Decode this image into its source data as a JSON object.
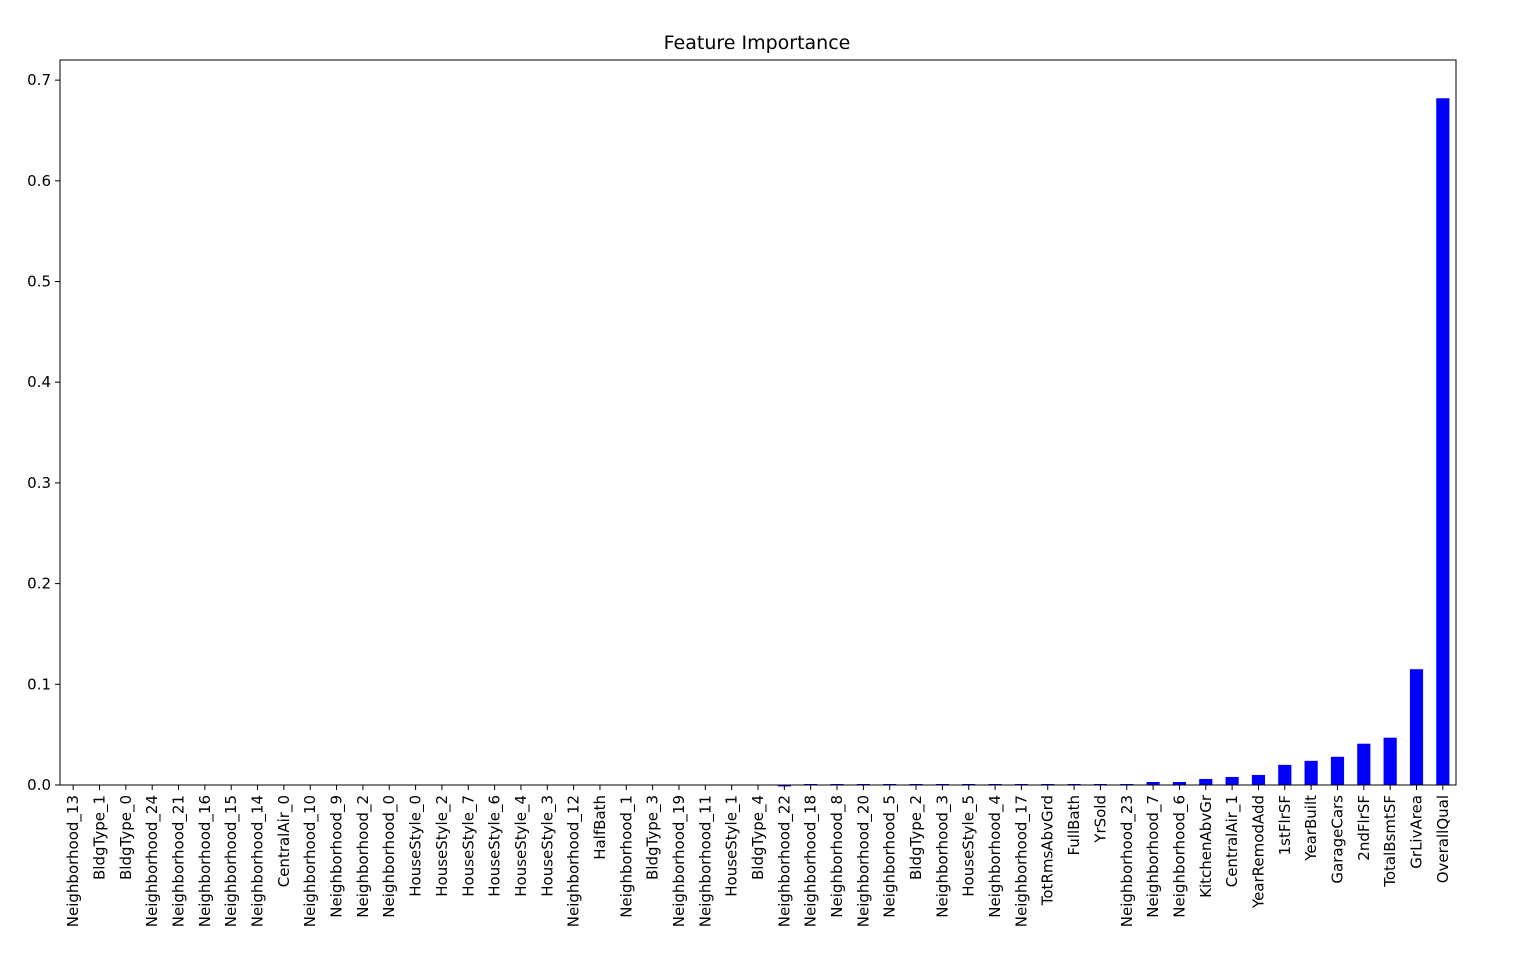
{
  "chart_data": {
    "type": "bar",
    "title": "Feature Importance",
    "xlabel": "",
    "ylabel": "",
    "ylim": [
      0,
      0.72
    ],
    "yticks": [
      "0.0",
      "0.1",
      "0.2",
      "0.3",
      "0.4",
      "0.5",
      "0.6",
      "0.7"
    ],
    "grid": false,
    "bar_color": "#0000ff",
    "categories": [
      "Neighborhood_13",
      "BldgType_1",
      "BldgType_0",
      "Neighborhood_24",
      "Neighborhood_21",
      "Neighborhood_16",
      "Neighborhood_15",
      "Neighborhood_14",
      "CentralAir_0",
      "Neighborhood_10",
      "Neighborhood_9",
      "Neighborhood_2",
      "Neighborhood_0",
      "HouseStyle_0",
      "HouseStyle_2",
      "HouseStyle_7",
      "HouseStyle_6",
      "HouseStyle_4",
      "HouseStyle_3",
      "Neighborhood_12",
      "HalfBath",
      "Neighborhood_1",
      "BldgType_3",
      "Neighborhood_19",
      "Neighborhood_11",
      "HouseStyle_1",
      "BldgType_4",
      "Neighborhood_22",
      "Neighborhood_18",
      "Neighborhood_8",
      "Neighborhood_20",
      "Neighborhood_5",
      "BldgType_2",
      "Neighborhood_3",
      "HouseStyle_5",
      "Neighborhood_4",
      "Neighborhood_17",
      "TotRmsAbvGrd",
      "FullBath",
      "YrSold",
      "Neighborhood_23",
      "Neighborhood_7",
      "Neighborhood_6",
      "KitchenAbvGr",
      "CentralAir_1",
      "YearRemodAdd",
      "1stFlrSF",
      "YearBuilt",
      "GarageCars",
      "2ndFlrSF",
      "TotalBsmtSF",
      "GrLivArea",
      "OverallQual"
    ],
    "values": [
      0,
      0,
      0,
      0,
      0,
      0,
      0,
      0,
      0,
      0,
      0,
      0,
      0,
      0,
      0,
      0,
      0,
      0,
      0,
      0,
      0,
      0,
      0,
      0,
      0,
      0,
      0,
      0.0001,
      0.001,
      0.001,
      0.001,
      0.001,
      0.001,
      0.001,
      0.001,
      0.001,
      0.001,
      0.001,
      0.001,
      0.001,
      0.001,
      0.003,
      0.003,
      0.006,
      0.008,
      0.01,
      0.02,
      0.024,
      0.028,
      0.041,
      0.047,
      0.115,
      0.682
    ]
  }
}
